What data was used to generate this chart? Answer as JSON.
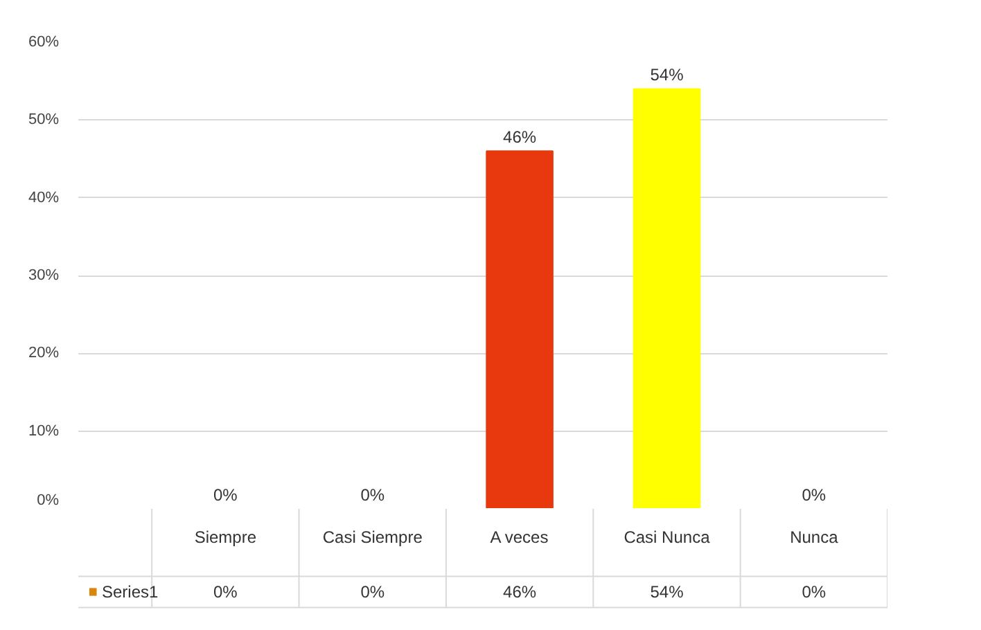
{
  "chart_data": {
    "type": "bar",
    "categories": [
      "Siempre",
      "Casi Siempre",
      "A veces",
      "Casi Nunca",
      "Nunca"
    ],
    "series": [
      {
        "name": "Series1",
        "values": [
          0,
          0,
          46,
          54,
          0
        ],
        "colors": [
          "#d9860f",
          "#2ea6bd",
          "#e8380d",
          "#ffff00",
          "#7ab8b2"
        ]
      }
    ],
    "ylim": [
      0,
      60
    ],
    "yticks": [
      {
        "value": 0,
        "label": "0%"
      },
      {
        "value": 10,
        "label": "10%"
      },
      {
        "value": 20,
        "label": "20%"
      },
      {
        "value": 30,
        "label": "30%"
      },
      {
        "value": 40,
        "label": "40%"
      },
      {
        "value": 50,
        "label": "50%"
      },
      {
        "value": 60,
        "label": "60%"
      }
    ],
    "value_labels": [
      "0%",
      "0%",
      "46%",
      "54%",
      "0%"
    ],
    "grid": "y",
    "legend": "bottom"
  }
}
